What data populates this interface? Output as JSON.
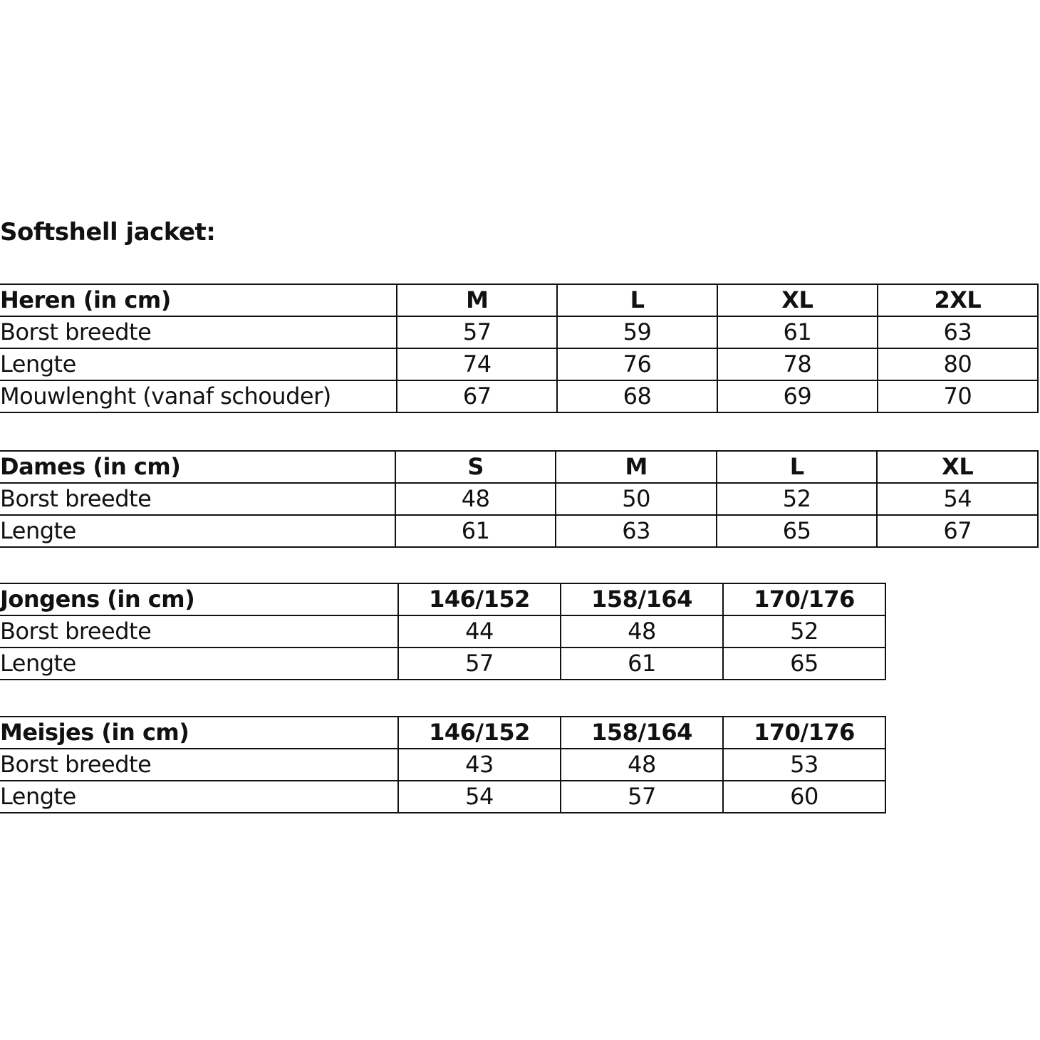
{
  "title": "Softshell jacket:",
  "tables": [
    {
      "header": [
        "Heren (in cm)",
        "M",
        "L",
        "XL",
        "2XL"
      ],
      "rows": [
        [
          "Borst breedte",
          "57",
          "59",
          "61",
          "63"
        ],
        [
          "Lengte",
          "74",
          "76",
          "78",
          "80"
        ],
        [
          "Mouwlenght (vanaf schouder)",
          "67",
          "68",
          "69",
          "70"
        ]
      ]
    },
    {
      "header": [
        "Dames (in cm)",
        "S",
        "M",
        "L",
        "XL"
      ],
      "rows": [
        [
          "Borst breedte",
          "48",
          "50",
          "52",
          "54"
        ],
        [
          "Lengte",
          "61",
          "63",
          "65",
          "67"
        ]
      ]
    },
    {
      "header": [
        "Jongens (in cm)",
        "146/152",
        "158/164",
        "170/176"
      ],
      "rows": [
        [
          "Borst breedte",
          "44",
          "48",
          "52"
        ],
        [
          "Lengte",
          "57",
          "61",
          "65"
        ]
      ]
    },
    {
      "header": [
        "Meisjes (in cm)",
        "146/152",
        "158/164",
        "170/176"
      ],
      "rows": [
        [
          "Borst breedte",
          "43",
          "48",
          "53"
        ],
        [
          "Lengte",
          "54",
          "57",
          "60"
        ]
      ]
    }
  ]
}
